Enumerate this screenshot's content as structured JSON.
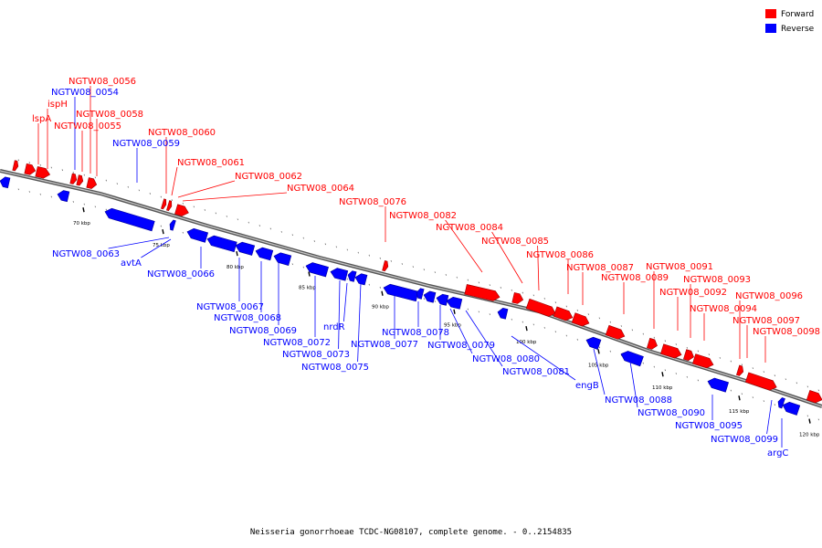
{
  "caption": "Neisseria gonorrhoeae TCDC-NG08107, complete genome. - 0..2154835",
  "legend": [
    {
      "label": "Forward",
      "color": "#ff0000"
    },
    {
      "label": "Reverse",
      "color": "#0000ff"
    }
  ],
  "colors": {
    "forward": "#ff0000",
    "reverse": "#0000ff",
    "backbone": "#7f7f7f"
  },
  "ticks": [
    "70 kbp",
    "75 kbp",
    "80 kbp",
    "85 kbp",
    "90 kbp",
    "95 kbp",
    "100 kbp",
    "105 kbp",
    "110 kbp",
    "115 kbp",
    "120 kbp"
  ],
  "genes": [
    {
      "name": "lspA",
      "strand": "forward"
    },
    {
      "name": "ispH",
      "strand": "forward"
    },
    {
      "name": "NGTW08_0054",
      "strand": "reverse"
    },
    {
      "name": "NGTW08_0055",
      "strand": "forward"
    },
    {
      "name": "NGTW08_0056",
      "strand": "forward"
    },
    {
      "name": "NGTW08_0058",
      "strand": "forward"
    },
    {
      "name": "NGTW08_0059",
      "strand": "reverse"
    },
    {
      "name": "NGTW08_0060",
      "strand": "forward"
    },
    {
      "name": "NGTW08_0061",
      "strand": "forward"
    },
    {
      "name": "NGTW08_0062",
      "strand": "forward"
    },
    {
      "name": "NGTW08_0064",
      "strand": "forward"
    },
    {
      "name": "NGTW08_0076",
      "strand": "forward"
    },
    {
      "name": "NGTW08_0082",
      "strand": "forward"
    },
    {
      "name": "NGTW08_0084",
      "strand": "forward"
    },
    {
      "name": "NGTW08_0085",
      "strand": "forward"
    },
    {
      "name": "NGTW08_0086",
      "strand": "forward"
    },
    {
      "name": "NGTW08_0087",
      "strand": "forward"
    },
    {
      "name": "NGTW08_0089",
      "strand": "forward"
    },
    {
      "name": "NGTW08_0091",
      "strand": "forward"
    },
    {
      "name": "NGTW08_0092",
      "strand": "forward"
    },
    {
      "name": "NGTW08_0093",
      "strand": "forward"
    },
    {
      "name": "NGTW08_0094",
      "strand": "forward"
    },
    {
      "name": "NGTW08_0096",
      "strand": "forward"
    },
    {
      "name": "NGTW08_0097",
      "strand": "forward"
    },
    {
      "name": "NGTW08_0098",
      "strand": "forward"
    },
    {
      "name": "NGTW08_0063",
      "strand": "reverse"
    },
    {
      "name": "avtA",
      "strand": "reverse"
    },
    {
      "name": "NGTW08_0066",
      "strand": "reverse"
    },
    {
      "name": "NGTW08_0067",
      "strand": "reverse"
    },
    {
      "name": "NGTW08_0068",
      "strand": "reverse"
    },
    {
      "name": "NGTW08_0069",
      "strand": "reverse"
    },
    {
      "name": "nrdR",
      "strand": "reverse"
    },
    {
      "name": "NGTW08_0072",
      "strand": "reverse"
    },
    {
      "name": "NGTW08_0073",
      "strand": "reverse"
    },
    {
      "name": "NGTW08_0075",
      "strand": "reverse"
    },
    {
      "name": "NGTW08_0077",
      "strand": "reverse"
    },
    {
      "name": "NGTW08_0078",
      "strand": "reverse"
    },
    {
      "name": "NGTW08_0079",
      "strand": "reverse"
    },
    {
      "name": "NGTW08_0080",
      "strand": "reverse"
    },
    {
      "name": "NGTW08_0081",
      "strand": "reverse"
    },
    {
      "name": "engB",
      "strand": "reverse"
    },
    {
      "name": "NGTW08_0088",
      "strand": "reverse"
    },
    {
      "name": "NGTW08_0090",
      "strand": "reverse"
    },
    {
      "name": "NGTW08_0095",
      "strand": "reverse"
    },
    {
      "name": "NGTW08_0099",
      "strand": "reverse"
    },
    {
      "name": "argC",
      "strand": "reverse"
    }
  ]
}
